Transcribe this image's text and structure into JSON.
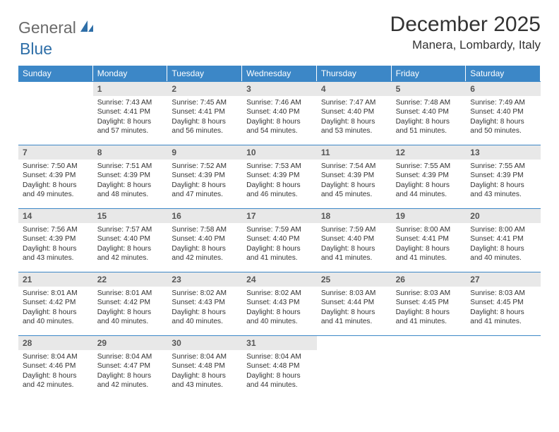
{
  "logo": {
    "general": "General",
    "blue": "Blue"
  },
  "title": "December 2025",
  "location": "Manera, Lombardy, Italy",
  "colors": {
    "header_bg": "#3c87c7",
    "header_text": "#ffffff",
    "daynum_bg": "#e8e8e8",
    "border": "#3c87c7",
    "logo_gray": "#6a6a6a",
    "logo_blue": "#2f6fa8"
  },
  "daysOfWeek": [
    "Sunday",
    "Monday",
    "Tuesday",
    "Wednesday",
    "Thursday",
    "Friday",
    "Saturday"
  ],
  "weeks": [
    [
      {
        "n": "",
        "sr": "",
        "ss": "",
        "dl": ""
      },
      {
        "n": "1",
        "sr": "7:43 AM",
        "ss": "4:41 PM",
        "dl": "8 hours and 57 minutes."
      },
      {
        "n": "2",
        "sr": "7:45 AM",
        "ss": "4:41 PM",
        "dl": "8 hours and 56 minutes."
      },
      {
        "n": "3",
        "sr": "7:46 AM",
        "ss": "4:40 PM",
        "dl": "8 hours and 54 minutes."
      },
      {
        "n": "4",
        "sr": "7:47 AM",
        "ss": "4:40 PM",
        "dl": "8 hours and 53 minutes."
      },
      {
        "n": "5",
        "sr": "7:48 AM",
        "ss": "4:40 PM",
        "dl": "8 hours and 51 minutes."
      },
      {
        "n": "6",
        "sr": "7:49 AM",
        "ss": "4:40 PM",
        "dl": "8 hours and 50 minutes."
      }
    ],
    [
      {
        "n": "7",
        "sr": "7:50 AM",
        "ss": "4:39 PM",
        "dl": "8 hours and 49 minutes."
      },
      {
        "n": "8",
        "sr": "7:51 AM",
        "ss": "4:39 PM",
        "dl": "8 hours and 48 minutes."
      },
      {
        "n": "9",
        "sr": "7:52 AM",
        "ss": "4:39 PM",
        "dl": "8 hours and 47 minutes."
      },
      {
        "n": "10",
        "sr": "7:53 AM",
        "ss": "4:39 PM",
        "dl": "8 hours and 46 minutes."
      },
      {
        "n": "11",
        "sr": "7:54 AM",
        "ss": "4:39 PM",
        "dl": "8 hours and 45 minutes."
      },
      {
        "n": "12",
        "sr": "7:55 AM",
        "ss": "4:39 PM",
        "dl": "8 hours and 44 minutes."
      },
      {
        "n": "13",
        "sr": "7:55 AM",
        "ss": "4:39 PM",
        "dl": "8 hours and 43 minutes."
      }
    ],
    [
      {
        "n": "14",
        "sr": "7:56 AM",
        "ss": "4:39 PM",
        "dl": "8 hours and 43 minutes."
      },
      {
        "n": "15",
        "sr": "7:57 AM",
        "ss": "4:40 PM",
        "dl": "8 hours and 42 minutes."
      },
      {
        "n": "16",
        "sr": "7:58 AM",
        "ss": "4:40 PM",
        "dl": "8 hours and 42 minutes."
      },
      {
        "n": "17",
        "sr": "7:59 AM",
        "ss": "4:40 PM",
        "dl": "8 hours and 41 minutes."
      },
      {
        "n": "18",
        "sr": "7:59 AM",
        "ss": "4:40 PM",
        "dl": "8 hours and 41 minutes."
      },
      {
        "n": "19",
        "sr": "8:00 AM",
        "ss": "4:41 PM",
        "dl": "8 hours and 41 minutes."
      },
      {
        "n": "20",
        "sr": "8:00 AM",
        "ss": "4:41 PM",
        "dl": "8 hours and 40 minutes."
      }
    ],
    [
      {
        "n": "21",
        "sr": "8:01 AM",
        "ss": "4:42 PM",
        "dl": "8 hours and 40 minutes."
      },
      {
        "n": "22",
        "sr": "8:01 AM",
        "ss": "4:42 PM",
        "dl": "8 hours and 40 minutes."
      },
      {
        "n": "23",
        "sr": "8:02 AM",
        "ss": "4:43 PM",
        "dl": "8 hours and 40 minutes."
      },
      {
        "n": "24",
        "sr": "8:02 AM",
        "ss": "4:43 PM",
        "dl": "8 hours and 40 minutes."
      },
      {
        "n": "25",
        "sr": "8:03 AM",
        "ss": "4:44 PM",
        "dl": "8 hours and 41 minutes."
      },
      {
        "n": "26",
        "sr": "8:03 AM",
        "ss": "4:45 PM",
        "dl": "8 hours and 41 minutes."
      },
      {
        "n": "27",
        "sr": "8:03 AM",
        "ss": "4:45 PM",
        "dl": "8 hours and 41 minutes."
      }
    ],
    [
      {
        "n": "28",
        "sr": "8:04 AM",
        "ss": "4:46 PM",
        "dl": "8 hours and 42 minutes."
      },
      {
        "n": "29",
        "sr": "8:04 AM",
        "ss": "4:47 PM",
        "dl": "8 hours and 42 minutes."
      },
      {
        "n": "30",
        "sr": "8:04 AM",
        "ss": "4:48 PM",
        "dl": "8 hours and 43 minutes."
      },
      {
        "n": "31",
        "sr": "8:04 AM",
        "ss": "4:48 PM",
        "dl": "8 hours and 44 minutes."
      },
      {
        "n": "",
        "sr": "",
        "ss": "",
        "dl": ""
      },
      {
        "n": "",
        "sr": "",
        "ss": "",
        "dl": ""
      },
      {
        "n": "",
        "sr": "",
        "ss": "",
        "dl": ""
      }
    ]
  ]
}
